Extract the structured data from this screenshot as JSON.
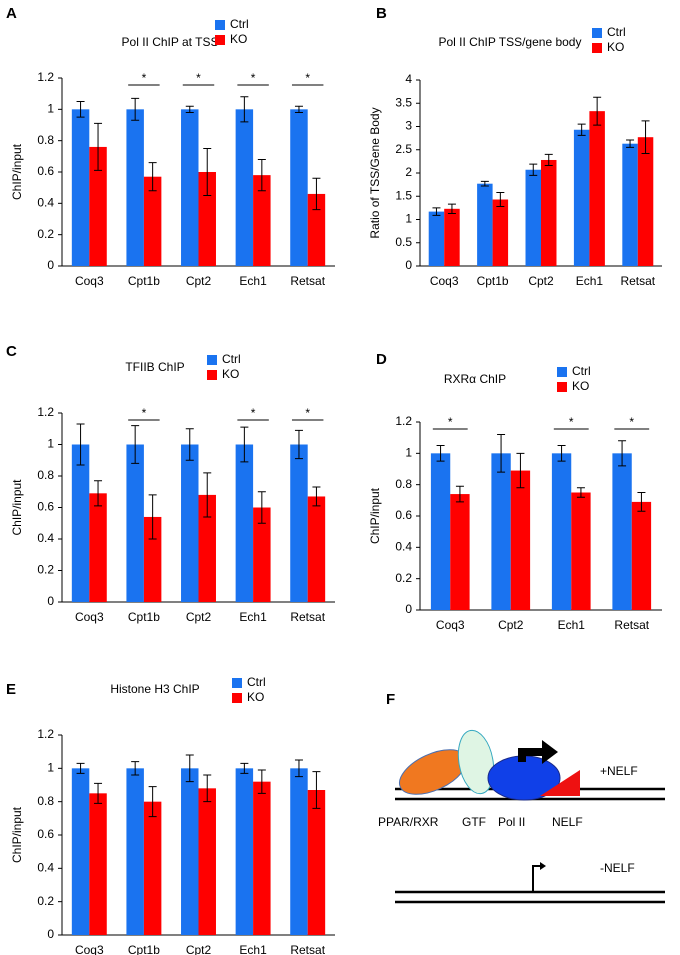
{
  "chart_data": [
    {
      "panel": "A",
      "type": "bar",
      "title": "Pol II ChIP at TSS",
      "y_label": "ChIP/input",
      "categories": [
        "Coq3",
        "Cpt1b",
        "Cpt2",
        "Ech1",
        "Retsat"
      ],
      "series": [
        {
          "name": "Ctrl",
          "color": "#1a73f0",
          "values": [
            1,
            1,
            1,
            1,
            1
          ],
          "errors": [
            0.05,
            0.07,
            0.02,
            0.08,
            0.02
          ]
        },
        {
          "name": "KO",
          "color": "#ff0000",
          "values": [
            0.76,
            0.57,
            0.6,
            0.58,
            0.46
          ],
          "errors": [
            0.15,
            0.09,
            0.15,
            0.1,
            0.1
          ]
        }
      ],
      "ylim": [
        0,
        1.2
      ],
      "yticks": [
        0,
        0.2,
        0.4,
        0.6,
        0.8,
        1,
        1.2
      ],
      "significance": [
        null,
        "*",
        "*",
        "*",
        "*"
      ]
    },
    {
      "panel": "B",
      "type": "bar",
      "title": "Pol II ChIP TSS/gene body",
      "y_label": "Ratio of TSS/Gene Body",
      "categories": [
        "Coq3",
        "Cpt1b",
        "Cpt2",
        "Ech1",
        "Retsat"
      ],
      "series": [
        {
          "name": "Ctrl",
          "color": "#1a73f0",
          "values": [
            1.17,
            1.77,
            2.07,
            2.93,
            2.63
          ],
          "errors": [
            0.08,
            0.05,
            0.12,
            0.12,
            0.08
          ]
        },
        {
          "name": "KO",
          "color": "#ff0000",
          "values": [
            1.23,
            1.43,
            2.28,
            3.33,
            2.77
          ],
          "errors": [
            0.1,
            0.15,
            0.12,
            0.3,
            0.35
          ]
        }
      ],
      "ylim": [
        0,
        4
      ],
      "yticks": [
        0,
        0.5,
        1,
        1.5,
        2,
        2.5,
        3,
        3.5,
        4
      ]
    },
    {
      "panel": "C",
      "type": "bar",
      "title": "TFIIB ChIP",
      "y_label": "ChIP/input",
      "categories": [
        "Coq3",
        "Cpt1b",
        "Cpt2",
        "Ech1",
        "Retsat"
      ],
      "series": [
        {
          "name": "Ctrl",
          "color": "#1a73f0",
          "values": [
            1,
            1,
            1,
            1,
            1
          ],
          "errors": [
            0.13,
            0.12,
            0.1,
            0.11,
            0.09
          ]
        },
        {
          "name": "KO",
          "color": "#ff0000",
          "values": [
            0.69,
            0.54,
            0.68,
            0.6,
            0.67
          ],
          "errors": [
            0.08,
            0.14,
            0.14,
            0.1,
            0.06
          ]
        }
      ],
      "ylim": [
        0,
        1.2
      ],
      "yticks": [
        0,
        0.2,
        0.4,
        0.6,
        0.8,
        1,
        1.2
      ],
      "significance": [
        null,
        "*",
        null,
        "*",
        "*"
      ]
    },
    {
      "panel": "D",
      "type": "bar",
      "title": "RXRα ChIP",
      "y_label": "ChIP/input",
      "categories": [
        "Coq3",
        "Cpt2",
        "Ech1",
        "Retsat"
      ],
      "series": [
        {
          "name": "Ctrl",
          "color": "#1a73f0",
          "values": [
            1,
            1,
            1,
            1
          ],
          "errors": [
            0.05,
            0.12,
            0.05,
            0.08
          ]
        },
        {
          "name": "KO",
          "color": "#ff0000",
          "values": [
            0.74,
            0.89,
            0.75,
            0.69
          ],
          "errors": [
            0.05,
            0.11,
            0.03,
            0.06
          ]
        }
      ],
      "ylim": [
        0,
        1.2
      ],
      "yticks": [
        0,
        0.2,
        0.4,
        0.6,
        0.8,
        1,
        1.2
      ],
      "significance": [
        "*",
        null,
        "*",
        "*"
      ]
    },
    {
      "panel": "E",
      "type": "bar",
      "title": "Histone H3 ChIP",
      "y_label": "ChIP/input",
      "categories": [
        "Coq3",
        "Cpt1b",
        "Cpt2",
        "Ech1",
        "Retsat"
      ],
      "series": [
        {
          "name": "Ctrl",
          "color": "#1a73f0",
          "values": [
            1,
            1,
            1,
            1,
            1
          ],
          "errors": [
            0.03,
            0.04,
            0.08,
            0.03,
            0.05
          ]
        },
        {
          "name": "KO",
          "color": "#ff0000",
          "values": [
            0.85,
            0.8,
            0.88,
            0.92,
            0.87
          ],
          "errors": [
            0.06,
            0.09,
            0.08,
            0.07,
            0.11
          ]
        }
      ],
      "ylim": [
        0,
        1.2
      ],
      "yticks": [
        0,
        0.2,
        0.4,
        0.6,
        0.8,
        1,
        1.2
      ]
    }
  ],
  "diagram": {
    "panel": "F",
    "plus_label": "+NELF",
    "minus_label": "-NELF",
    "factors": [
      "PPAR/RXR",
      "GTF",
      "Pol II",
      "NELF"
    ]
  }
}
